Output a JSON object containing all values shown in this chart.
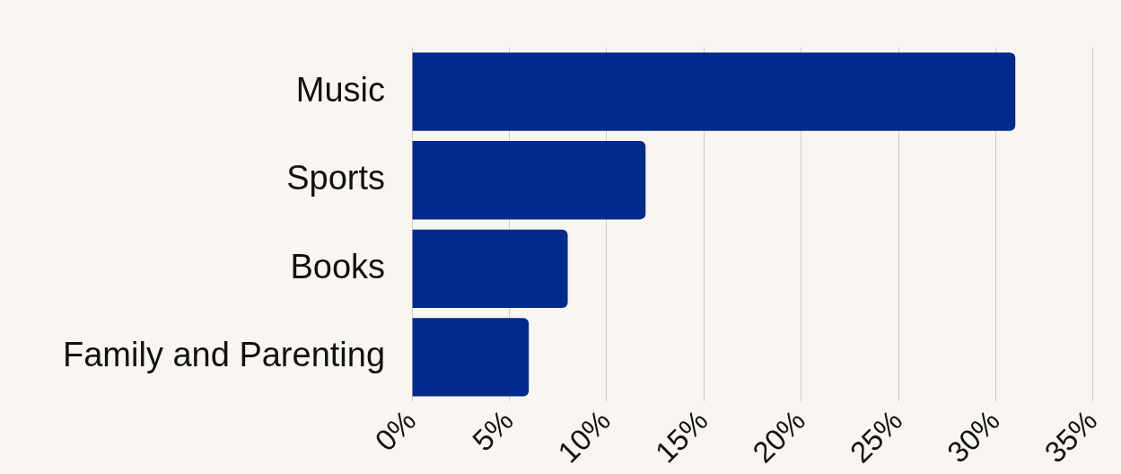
{
  "chart_data": {
    "type": "bar",
    "orientation": "horizontal",
    "categories": [
      "Music",
      "Sports",
      "Books",
      "Family and Parenting"
    ],
    "values": [
      31,
      12,
      8,
      6
    ],
    "color": "#002a8c",
    "xlim": [
      0,
      35
    ],
    "xticks": [
      {
        "value": 0,
        "label": "0%"
      },
      {
        "value": 5,
        "label": "5%"
      },
      {
        "value": 10,
        "label": "10%"
      },
      {
        "value": 15,
        "label": "15%"
      },
      {
        "value": 20,
        "label": "20%"
      },
      {
        "value": 25,
        "label": "25%"
      },
      {
        "value": 30,
        "label": "30%"
      },
      {
        "value": 35,
        "label": "35%"
      }
    ],
    "grid": "x",
    "legend": false
  }
}
